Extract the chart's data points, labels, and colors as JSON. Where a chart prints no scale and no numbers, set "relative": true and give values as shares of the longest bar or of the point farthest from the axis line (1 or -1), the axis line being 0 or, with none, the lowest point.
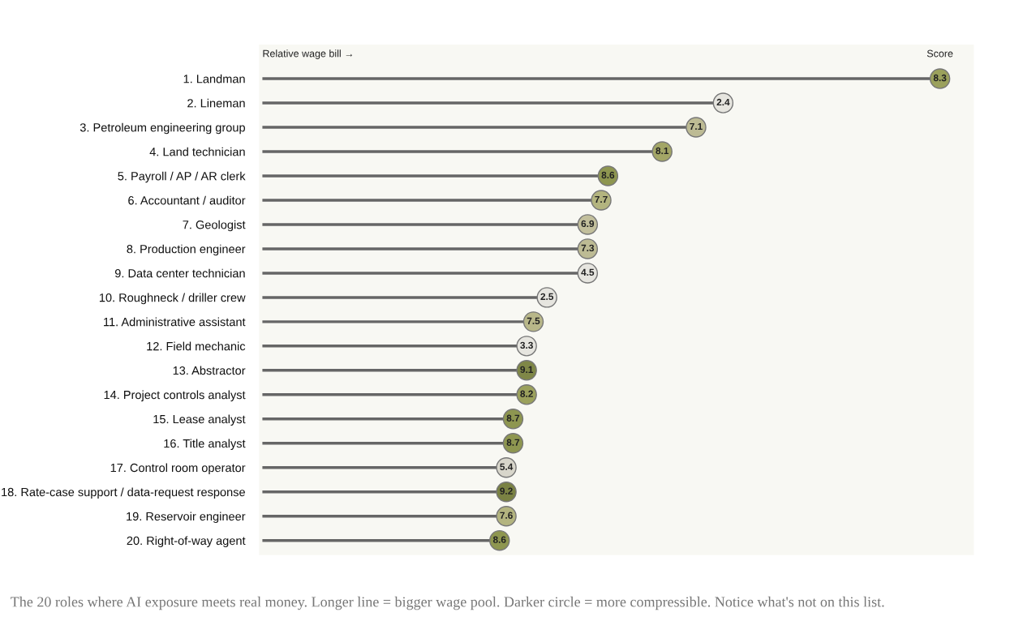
{
  "chart_data": {
    "type": "lollipop",
    "orientation": "horizontal",
    "relative": true,
    "categories": [
      "1. Landman",
      "2. Lineman",
      "3. Petroleum engineering group",
      "4. Land technician",
      "5. Payroll / AP / AR clerk",
      "6. Accountant / auditor",
      "7. Geologist",
      "8. Production engineer",
      "9. Data center technician",
      "10. Roughneck / driller crew",
      "11. Administrative assistant",
      "12. Field mechanic",
      "13. Abstractor",
      "14. Project controls analyst",
      "15. Lease analyst",
      "16. Title analyst",
      "17. Control room operator",
      "18. Rate-case support / data-request response",
      "19. Reservoir engineer",
      "20. Right-of-way agent"
    ],
    "series": [
      {
        "color": "#666666",
        "values": [
          1,
          0.68,
          0.64,
          0.59,
          0.51,
          0.5,
          0.48,
          0.48,
          0.48,
          0.42,
          0.4,
          0.39,
          0.39,
          0.39,
          0.37,
          0.37,
          0.36,
          0.36,
          0.36,
          0.35
        ],
        "colors": [
          "#9ba15c",
          "#e6e5df",
          "#bdbb94",
          "#a3a666",
          "#8e9650",
          "#b3b47f",
          "#c2bf9c",
          "#bdbb94",
          "#e6e5df",
          "#e6e5df",
          "#b8b789",
          "#e6e5df",
          "#7f8747",
          "#9ba15c",
          "#8e9650",
          "#8e9650",
          "#d8d6cb",
          "#7a8243",
          "#b3b47f",
          "#8e9650"
        ]
      }
    ],
    "marker": "circle",
    "annotations": [
      "Relative wage bill →",
      "Score",
      "The 20 roles where AI exposure meets real money. Longer line = bigger wage pool. Darker circle = more compressible. Notice what's not on this list.",
      {
        "text": "8.3",
        "x": 1,
        "y": "1. Landman"
      },
      {
        "text": "2.4",
        "x": 0.68,
        "y": "2. Lineman"
      },
      {
        "text": "7.1",
        "x": 0.64,
        "y": "3. Petroleum engineering group"
      },
      {
        "text": "8.1",
        "x": 0.59,
        "y": "4. Land technician"
      },
      {
        "text": "8.6",
        "x": 0.51,
        "y": "5. Payroll / AP / AR clerk"
      },
      {
        "text": "7.7",
        "x": 0.5,
        "y": "6. Accountant / auditor"
      },
      {
        "text": "6.9",
        "x": 0.48,
        "y": "7. Geologist"
      },
      {
        "text": "7.3",
        "x": 0.48,
        "y": "8. Production engineer"
      },
      {
        "text": "4.5",
        "x": 0.48,
        "y": "9. Data center technician"
      },
      {
        "text": "2.5",
        "x": 0.42,
        "y": "10. Roughneck / driller crew"
      },
      {
        "text": "7.5",
        "x": 0.4,
        "y": "11. Administrative assistant"
      },
      {
        "text": "3.3",
        "x": 0.39,
        "y": "12. Field mechanic"
      },
      {
        "text": "9.1",
        "x": 0.39,
        "y": "13. Abstractor"
      },
      {
        "text": "8.2",
        "x": 0.39,
        "y": "14. Project controls analyst"
      },
      {
        "text": "8.7",
        "x": 0.37,
        "y": "15. Lease analyst"
      },
      {
        "text": "8.7",
        "x": 0.37,
        "y": "16. Title analyst"
      },
      {
        "text": "5.4",
        "x": 0.36,
        "y": "17. Control room operator"
      },
      {
        "text": "9.2",
        "x": 0.36,
        "y": "18. Rate-case support / data-request response"
      },
      {
        "text": "7.6",
        "x": 0.36,
        "y": "19. Reservoir engineer"
      },
      {
        "text": "8.6",
        "x": 0.35,
        "y": "20. Right-of-way agent"
      }
    ]
  }
}
